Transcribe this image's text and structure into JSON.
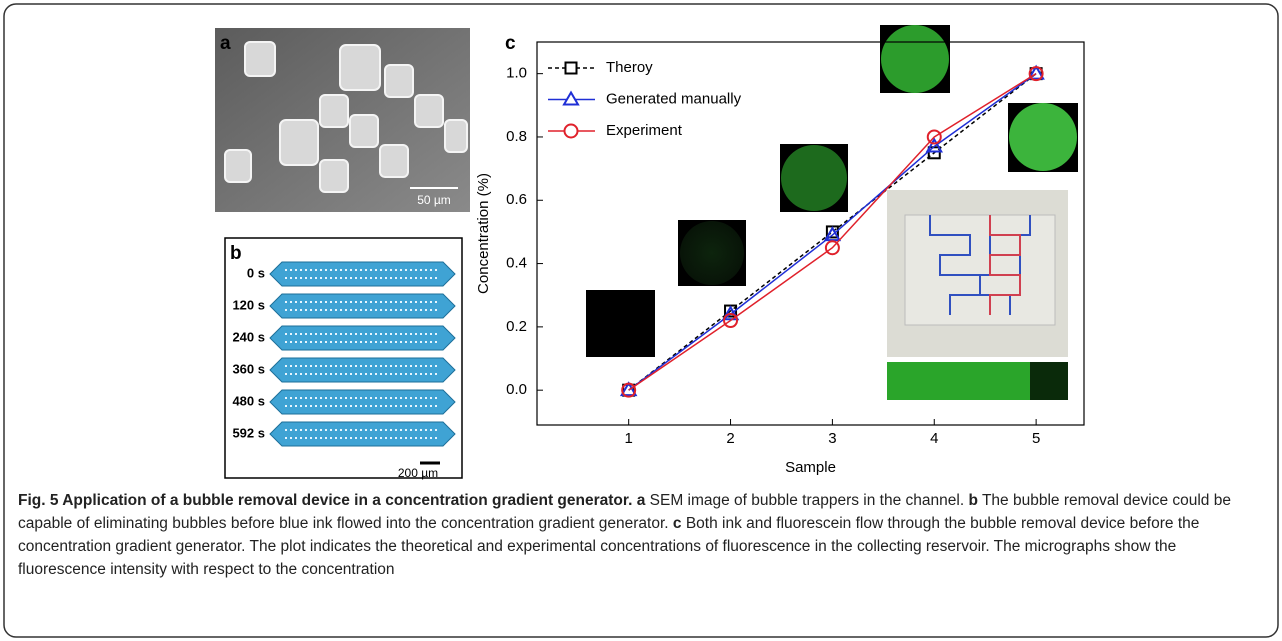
{
  "panels": {
    "a": {
      "label": "a",
      "scale_bar": "50 µm"
    },
    "b": {
      "label": "b",
      "times": [
        "0 s",
        "120 s",
        "240 s",
        "360 s",
        "480 s",
        "592 s"
      ],
      "scale_bar": "200 µm"
    }
  },
  "chart_data": {
    "type": "line",
    "panel_label": "c",
    "x_label": "Sample",
    "y_label": "Concentration (%)",
    "x": [
      1,
      2,
      3,
      4,
      5
    ],
    "series": [
      {
        "name": "Theroy",
        "color": "#000000",
        "marker": "square",
        "dashed": true,
        "values": [
          0,
          0.25,
          0.5,
          0.75,
          1.0
        ]
      },
      {
        "name": "Generated manually",
        "color": "#1f2fd6",
        "marker": "triangle",
        "dashed": false,
        "values": [
          0,
          0.24,
          0.49,
          0.77,
          1.0
        ]
      },
      {
        "name": "Experiment",
        "color": "#e0212b",
        "marker": "circle",
        "dashed": false,
        "values": [
          0,
          0.22,
          0.45,
          0.8,
          1.0
        ]
      }
    ],
    "xlim": [
      0.1,
      5.47
    ],
    "ylim": [
      -0.11,
      1.1
    ],
    "xticks": [
      1,
      2,
      3,
      4,
      5
    ],
    "yticks": [
      {
        "value": 0,
        "label": "0.0"
      },
      0.2,
      0.4,
      0.6,
      0.8,
      {
        "value": 1,
        "label": "1.0"
      }
    ],
    "legend": "upper left"
  },
  "caption": {
    "title": "Fig. 5 Application of a bubble removal device in a concentration gradient generator.",
    "parts": [
      {
        "label": "a",
        "text": "SEM image of bubble trappers in the channel."
      },
      {
        "label": "b",
        "text": "The bubble removal device could be capable of eliminating bubbles before blue ink flowed into the concentration gradient generator."
      },
      {
        "label": "c",
        "text": "Both ink and fluorescein flow through the bubble removal device before the concentration gradient generator. The plot indicates the theoretical and experimental concentrations of fluorescence in the collecting reservoir. The micrographs show the fluorescence intensity with respect to the concentration"
      }
    ]
  }
}
